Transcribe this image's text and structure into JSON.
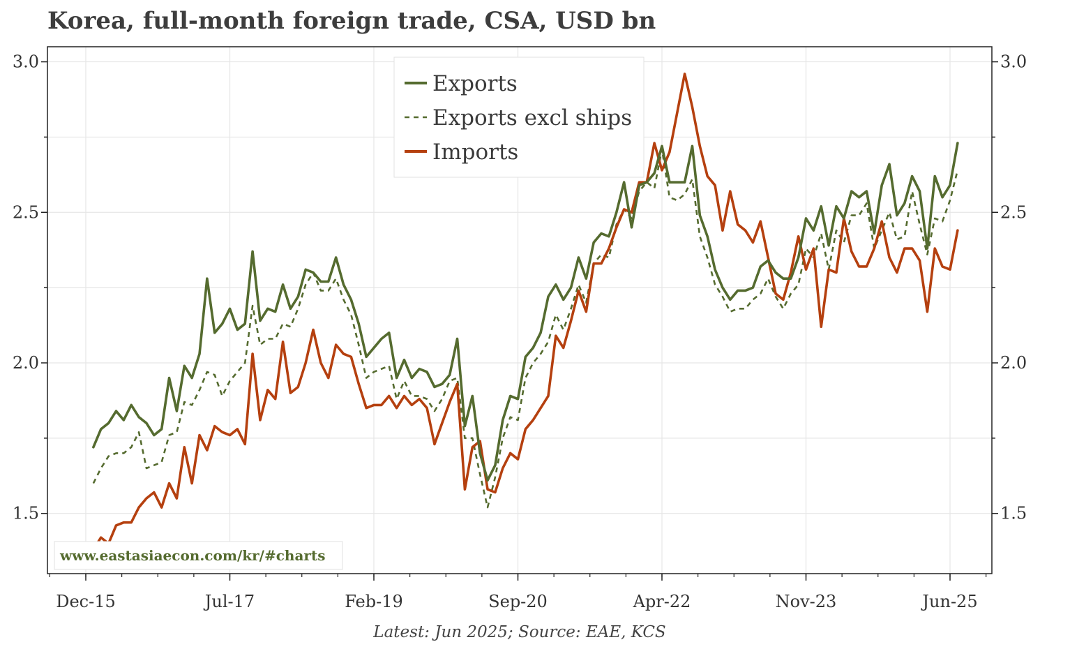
{
  "chart_data": {
    "type": "line",
    "title": "Korea, full-month foreign trade, CSA, USD bn",
    "source": "Latest: Jun 2025; Source: EAE, KCS",
    "watermark": "www.eastasiaecon.com/kr/#charts",
    "x_start": "Jan-16",
    "x_end": "Jun-25",
    "x_ticks": [
      "Dec-15",
      "Jul-17",
      "Feb-19",
      "Sep-20",
      "Apr-22",
      "Nov-23",
      "Jun-25"
    ],
    "ylim": [
      1.3,
      3.05
    ],
    "y_ticks": [
      "1.5",
      "2.0",
      "2.5",
      "3.0"
    ],
    "grid": true,
    "legend_position": "top-center",
    "series": [
      {
        "name": "Exports",
        "color": "#556b2f",
        "style": "solid",
        "values": [
          1.72,
          1.78,
          1.8,
          1.84,
          1.81,
          1.86,
          1.82,
          1.8,
          1.76,
          1.78,
          1.95,
          1.84,
          1.99,
          1.95,
          2.03,
          2.28,
          2.1,
          2.13,
          2.18,
          2.11,
          2.13,
          2.37,
          2.14,
          2.18,
          2.17,
          2.26,
          2.18,
          2.22,
          2.31,
          2.3,
          2.27,
          2.27,
          2.35,
          2.26,
          2.21,
          2.13,
          2.02,
          2.05,
          2.08,
          2.1,
          1.95,
          2.01,
          1.95,
          1.98,
          1.97,
          1.92,
          1.93,
          1.96,
          2.08,
          1.79,
          1.89,
          1.7,
          1.61,
          1.66,
          1.81,
          1.89,
          1.88,
          2.02,
          2.05,
          2.1,
          2.22,
          2.26,
          2.21,
          2.25,
          2.35,
          2.28,
          2.4,
          2.43,
          2.42,
          2.5,
          2.6,
          2.45,
          2.59,
          2.6,
          2.63,
          2.72,
          2.6,
          2.6,
          2.6,
          2.72,
          2.49,
          2.42,
          2.31,
          2.25,
          2.21,
          2.24,
          2.24,
          2.25,
          2.32,
          2.34,
          2.3,
          2.28,
          2.28,
          2.35,
          2.48,
          2.44,
          2.52,
          2.39,
          2.52,
          2.48,
          2.57,
          2.55,
          2.57,
          2.43,
          2.59,
          2.66,
          2.49,
          2.53,
          2.62,
          2.57,
          2.38,
          2.62,
          2.55,
          2.59,
          2.73
        ]
      },
      {
        "name": "Exports excl ships",
        "color": "#556b2f",
        "style": "dashed",
        "values": [
          1.6,
          1.65,
          1.69,
          1.7,
          1.7,
          1.72,
          1.77,
          1.65,
          1.66,
          1.67,
          1.76,
          1.77,
          1.87,
          1.86,
          1.91,
          1.97,
          1.96,
          1.89,
          1.94,
          1.97,
          2.0,
          2.19,
          2.06,
          2.08,
          2.08,
          2.13,
          2.12,
          2.18,
          2.26,
          2.3,
          2.24,
          2.24,
          2.28,
          2.21,
          2.16,
          2.06,
          1.95,
          1.97,
          1.98,
          1.99,
          1.88,
          1.94,
          1.89,
          1.89,
          1.88,
          1.84,
          1.88,
          1.94,
          1.95,
          1.75,
          1.75,
          1.63,
          1.52,
          1.62,
          1.75,
          1.82,
          1.81,
          1.95,
          2.0,
          2.03,
          2.07,
          2.16,
          2.11,
          2.18,
          2.26,
          2.2,
          2.33,
          2.36,
          2.35,
          2.46,
          2.51,
          2.48,
          2.57,
          2.6,
          2.58,
          2.71,
          2.55,
          2.54,
          2.56,
          2.61,
          2.42,
          2.35,
          2.26,
          2.22,
          2.17,
          2.18,
          2.18,
          2.21,
          2.23,
          2.28,
          2.22,
          2.18,
          2.23,
          2.26,
          2.38,
          2.35,
          2.43,
          2.31,
          2.44,
          2.4,
          2.49,
          2.49,
          2.53,
          2.38,
          2.44,
          2.5,
          2.41,
          2.42,
          2.57,
          2.46,
          2.36,
          2.48,
          2.47,
          2.54,
          2.64
        ]
      },
      {
        "name": "Imports",
        "color": "#b5400f",
        "style": "solid",
        "values": [
          1.38,
          1.42,
          1.4,
          1.46,
          1.47,
          1.47,
          1.52,
          1.55,
          1.57,
          1.52,
          1.6,
          1.55,
          1.72,
          1.6,
          1.76,
          1.71,
          1.79,
          1.77,
          1.76,
          1.78,
          1.73,
          2.03,
          1.81,
          1.91,
          1.88,
          2.07,
          1.9,
          1.92,
          2.0,
          2.11,
          2.0,
          1.95,
          2.06,
          2.03,
          2.02,
          1.93,
          1.85,
          1.86,
          1.86,
          1.89,
          1.85,
          1.89,
          1.86,
          1.88,
          1.85,
          1.73,
          1.8,
          1.87,
          1.93,
          1.58,
          1.72,
          1.74,
          1.58,
          1.57,
          1.65,
          1.7,
          1.68,
          1.78,
          1.81,
          1.85,
          1.89,
          2.09,
          2.05,
          2.14,
          2.24,
          2.17,
          2.33,
          2.33,
          2.38,
          2.45,
          2.51,
          2.5,
          2.6,
          2.6,
          2.73,
          2.64,
          2.7,
          2.83,
          2.96,
          2.85,
          2.72,
          2.62,
          2.59,
          2.44,
          2.57,
          2.46,
          2.44,
          2.4,
          2.47,
          2.35,
          2.23,
          2.21,
          2.3,
          2.42,
          2.31,
          2.38,
          2.12,
          2.31,
          2.3,
          2.48,
          2.37,
          2.32,
          2.32,
          2.38,
          2.47,
          2.35,
          2.3,
          2.38,
          2.38,
          2.34,
          2.17,
          2.38,
          2.32,
          2.31,
          2.44
        ]
      }
    ]
  }
}
